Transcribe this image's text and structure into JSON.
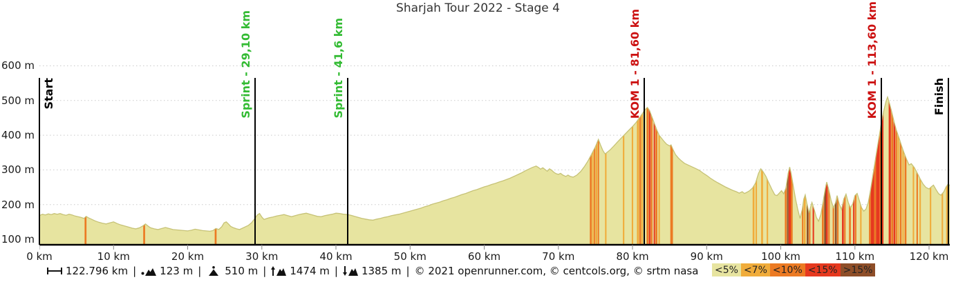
{
  "chart_data": {
    "type": "area",
    "title": "Sharjah Tour 2022 - Stage 4",
    "x_unit": "km",
    "y_unit": "m",
    "x_range_km": [
      0,
      122.796
    ],
    "y_axis_ticks_m": [
      600,
      500,
      400,
      300,
      200,
      100
    ],
    "x_ticks_km": [
      0,
      10,
      20,
      30,
      40,
      50,
      60,
      70,
      80,
      90,
      100,
      110,
      120
    ],
    "grid": "horizontal-dotted",
    "gradient_colors": {
      "lt5": "#e7e4a0",
      "lt7": "#f0ac3b",
      "lt10": "#ec7a23",
      "lt15": "#e6391f",
      "gt15": "#8e4e28"
    },
    "legend": [
      {
        "label": "<5%",
        "color": "#e7e4a0"
      },
      {
        "label": "<7%",
        "color": "#f0ac3b"
      },
      {
        "label": "<10%",
        "color": "#ec7a23"
      },
      {
        "label": "<15%",
        "color": "#e6391f"
      },
      {
        "label": ">15%",
        "color": "#8e4e28"
      }
    ],
    "markers": [
      {
        "type": "start",
        "label": "Start",
        "km": 0,
        "color": "#000000"
      },
      {
        "type": "sprint",
        "label": "Sprint - 29,10 km",
        "km": 29.1,
        "color": "#33bb33"
      },
      {
        "type": "sprint",
        "label": "Sprint - 41,6 km",
        "km": 41.6,
        "color": "#33bb33"
      },
      {
        "type": "kom",
        "label": "KOM 1 - 81,60 km",
        "km": 81.6,
        "color": "#cc1111"
      },
      {
        "type": "kom",
        "label": "KOM 1 - 113,60 km",
        "km": 113.6,
        "color": "#cc1111"
      },
      {
        "type": "finish",
        "label": "Finish",
        "km": 122.796,
        "color": "#000000"
      }
    ],
    "elevation_profile": [
      [
        0,
        168
      ],
      [
        0.4,
        172
      ],
      [
        0.8,
        170
      ],
      [
        1.2,
        173
      ],
      [
        1.6,
        171
      ],
      [
        2,
        174
      ],
      [
        2.4,
        172
      ],
      [
        2.8,
        174
      ],
      [
        3.2,
        171
      ],
      [
        3.6,
        169
      ],
      [
        4,
        172
      ],
      [
        4.4,
        170
      ],
      [
        4.8,
        167
      ],
      [
        5.2,
        165
      ],
      [
        5.6,
        163
      ],
      [
        6,
        160
      ],
      [
        6.3,
        166
      ],
      [
        6.6,
        162
      ],
      [
        7,
        158
      ],
      [
        7.5,
        153
      ],
      [
        8,
        149
      ],
      [
        8.5,
        146
      ],
      [
        9,
        144
      ],
      [
        9.5,
        147
      ],
      [
        10,
        150
      ],
      [
        10.5,
        145
      ],
      [
        11,
        141
      ],
      [
        11.5,
        138
      ],
      [
        12,
        135
      ],
      [
        12.5,
        132
      ],
      [
        13,
        130
      ],
      [
        13.5,
        133
      ],
      [
        14,
        139
      ],
      [
        14.3,
        144
      ],
      [
        14.7,
        137
      ],
      [
        15,
        133
      ],
      [
        15.5,
        130
      ],
      [
        16,
        128
      ],
      [
        16.5,
        131
      ],
      [
        17,
        134
      ],
      [
        17.5,
        131
      ],
      [
        18,
        128
      ],
      [
        18.5,
        127
      ],
      [
        19,
        126
      ],
      [
        19.5,
        125
      ],
      [
        20,
        124
      ],
      [
        20.5,
        126
      ],
      [
        21,
        129
      ],
      [
        21.5,
        127
      ],
      [
        22,
        125
      ],
      [
        22.5,
        124
      ],
      [
        23,
        123
      ],
      [
        23.4,
        125
      ],
      [
        23.8,
        131
      ],
      [
        24.2,
        128
      ],
      [
        24.6,
        136
      ],
      [
        24.9,
        147
      ],
      [
        25.2,
        150
      ],
      [
        25.5,
        144
      ],
      [
        25.8,
        137
      ],
      [
        26.2,
        133
      ],
      [
        26.6,
        130
      ],
      [
        27,
        128
      ],
      [
        27.4,
        132
      ],
      [
        27.8,
        136
      ],
      [
        28.2,
        140
      ],
      [
        28.6,
        147
      ],
      [
        29,
        158
      ],
      [
        29.4,
        170
      ],
      [
        29.7,
        174
      ],
      [
        30,
        164
      ],
      [
        30.3,
        157
      ],
      [
        30.7,
        160
      ],
      [
        31,
        162
      ],
      [
        31.5,
        164
      ],
      [
        32,
        167
      ],
      [
        32.5,
        169
      ],
      [
        33,
        171
      ],
      [
        33.5,
        168
      ],
      [
        34,
        165
      ],
      [
        34.5,
        168
      ],
      [
        35,
        171
      ],
      [
        35.5,
        173
      ],
      [
        36,
        175
      ],
      [
        36.5,
        172
      ],
      [
        37,
        169
      ],
      [
        37.5,
        166
      ],
      [
        38,
        165
      ],
      [
        38.5,
        168
      ],
      [
        39,
        170
      ],
      [
        39.5,
        172
      ],
      [
        40,
        175
      ],
      [
        40.5,
        174
      ],
      [
        41,
        172
      ],
      [
        41.6,
        171
      ],
      [
        42,
        169
      ],
      [
        42.5,
        166
      ],
      [
        43,
        163
      ],
      [
        43.5,
        160
      ],
      [
        44,
        158
      ],
      [
        44.5,
        156
      ],
      [
        45,
        155
      ],
      [
        45.5,
        158
      ],
      [
        46,
        160
      ],
      [
        46.5,
        163
      ],
      [
        47,
        165
      ],
      [
        47.5,
        168
      ],
      [
        48,
        170
      ],
      [
        48.5,
        172
      ],
      [
        49,
        175
      ],
      [
        49.5,
        178
      ],
      [
        50,
        181
      ],
      [
        50.5,
        184
      ],
      [
        51,
        187
      ],
      [
        51.5,
        190
      ],
      [
        52,
        194
      ],
      [
        52.5,
        197
      ],
      [
        53,
        201
      ],
      [
        53.5,
        204
      ],
      [
        54,
        207
      ],
      [
        54.5,
        211
      ],
      [
        55,
        214
      ],
      [
        55.5,
        218
      ],
      [
        56,
        221
      ],
      [
        56.5,
        225
      ],
      [
        57,
        229
      ],
      [
        57.5,
        232
      ],
      [
        58,
        236
      ],
      [
        58.5,
        240
      ],
      [
        59,
        243
      ],
      [
        59.5,
        247
      ],
      [
        60,
        251
      ],
      [
        60.5,
        254
      ],
      [
        61,
        258
      ],
      [
        61.5,
        261
      ],
      [
        62,
        265
      ],
      [
        62.5,
        268
      ],
      [
        63,
        272
      ],
      [
        63.5,
        276
      ],
      [
        64,
        281
      ],
      [
        64.5,
        286
      ],
      [
        65,
        291
      ],
      [
        65.5,
        297
      ],
      [
        66,
        302
      ],
      [
        66.5,
        307
      ],
      [
        67,
        311
      ],
      [
        67.3,
        307
      ],
      [
        67.6,
        302
      ],
      [
        67.9,
        306
      ],
      [
        68.2,
        301
      ],
      [
        68.5,
        296
      ],
      [
        68.8,
        303
      ],
      [
        69.1,
        299
      ],
      [
        69.4,
        293
      ],
      [
        69.7,
        289
      ],
      [
        70,
        287
      ],
      [
        70.3,
        290
      ],
      [
        70.6,
        285
      ],
      [
        71,
        281
      ],
      [
        71.3,
        285
      ],
      [
        71.6,
        281
      ],
      [
        72,
        279
      ],
      [
        72.5,
        285
      ],
      [
        73,
        295
      ],
      [
        73.5,
        309
      ],
      [
        74,
        326
      ],
      [
        74.5,
        346
      ],
      [
        75,
        367
      ],
      [
        75.4,
        388
      ],
      [
        75.7,
        371
      ],
      [
        76,
        356
      ],
      [
        76.3,
        346
      ],
      [
        76.6,
        351
      ],
      [
        77,
        358
      ],
      [
        77.5,
        369
      ],
      [
        78,
        381
      ],
      [
        78.5,
        392
      ],
      [
        79,
        403
      ],
      [
        79.5,
        414
      ],
      [
        80,
        425
      ],
      [
        80.5,
        437
      ],
      [
        81,
        452
      ],
      [
        81.3,
        461
      ],
      [
        81.6,
        471
      ],
      [
        82,
        480
      ],
      [
        82.3,
        471
      ],
      [
        82.6,
        454
      ],
      [
        83,
        431
      ],
      [
        83.3,
        414
      ],
      [
        83.6,
        400
      ],
      [
        84,
        389
      ],
      [
        84.3,
        381
      ],
      [
        84.6,
        374
      ],
      [
        85,
        369
      ],
      [
        85.2,
        372
      ],
      [
        85.5,
        357
      ],
      [
        85.8,
        344
      ],
      [
        86.2,
        334
      ],
      [
        86.6,
        326
      ],
      [
        87,
        319
      ],
      [
        87.5,
        314
      ],
      [
        88,
        309
      ],
      [
        88.5,
        304
      ],
      [
        89,
        299
      ],
      [
        89.5,
        291
      ],
      [
        90,
        284
      ],
      [
        90.5,
        276
      ],
      [
        91,
        269
      ],
      [
        91.5,
        263
      ],
      [
        92,
        257
      ],
      [
        92.5,
        251
      ],
      [
        93,
        246
      ],
      [
        93.5,
        241
      ],
      [
        94,
        237
      ],
      [
        94.4,
        233
      ],
      [
        94.8,
        237
      ],
      [
        95.1,
        232
      ],
      [
        95.4,
        235
      ],
      [
        95.8,
        240
      ],
      [
        96.2,
        248
      ],
      [
        96.6,
        262
      ],
      [
        97,
        290
      ],
      [
        97.3,
        303
      ],
      [
        97.6,
        295
      ],
      [
        98,
        281
      ],
      [
        98.4,
        262
      ],
      [
        98.8,
        244
      ],
      [
        99.2,
        228
      ],
      [
        99.5,
        226
      ],
      [
        99.8,
        233
      ],
      [
        100.1,
        240
      ],
      [
        100.4,
        231
      ],
      [
        100.7,
        248
      ],
      [
        101,
        290
      ],
      [
        101.2,
        308
      ],
      [
        101.4,
        290
      ],
      [
        101.7,
        252
      ],
      [
        102,
        215
      ],
      [
        102.3,
        185
      ],
      [
        102.6,
        160
      ],
      [
        102.9,
        186
      ],
      [
        103.1,
        216
      ],
      [
        103.3,
        228
      ],
      [
        103.5,
        206
      ],
      [
        103.8,
        176
      ],
      [
        104,
        191
      ],
      [
        104.2,
        206
      ],
      [
        104.5,
        186
      ],
      [
        104.8,
        163
      ],
      [
        105.1,
        152
      ],
      [
        105.4,
        171
      ],
      [
        105.7,
        206
      ],
      [
        106,
        246
      ],
      [
        106.2,
        265
      ],
      [
        106.5,
        241
      ],
      [
        106.8,
        211
      ],
      [
        107.1,
        191
      ],
      [
        107.4,
        206
      ],
      [
        107.6,
        226
      ],
      [
        107.9,
        201
      ],
      [
        108.2,
        186
      ],
      [
        108.5,
        216
      ],
      [
        108.8,
        230
      ],
      [
        109.1,
        206
      ],
      [
        109.4,
        191
      ],
      [
        109.7,
        201
      ],
      [
        110,
        226
      ],
      [
        110.3,
        232
      ],
      [
        110.6,
        211
      ],
      [
        110.9,
        191
      ],
      [
        111.2,
        181
      ],
      [
        111.5,
        187
      ],
      [
        111.8,
        206
      ],
      [
        112.1,
        241
      ],
      [
        112.4,
        281
      ],
      [
        112.7,
        321
      ],
      [
        113,
        361
      ],
      [
        113.3,
        401
      ],
      [
        113.6,
        441
      ],
      [
        113.9,
        471
      ],
      [
        114.2,
        498
      ],
      [
        114.4,
        510
      ],
      [
        114.7,
        489
      ],
      [
        115,
        464
      ],
      [
        115.3,
        437
      ],
      [
        115.6,
        414
      ],
      [
        116,
        389
      ],
      [
        116.3,
        369
      ],
      [
        116.6,
        351
      ],
      [
        117,
        329
      ],
      [
        117.3,
        314
      ],
      [
        117.6,
        318
      ],
      [
        118,
        307
      ],
      [
        118.4,
        291
      ],
      [
        118.8,
        274
      ],
      [
        119.2,
        259
      ],
      [
        119.6,
        249
      ],
      [
        120,
        245
      ],
      [
        120.3,
        251
      ],
      [
        120.6,
        256
      ],
      [
        121,
        241
      ],
      [
        121.3,
        231
      ],
      [
        121.6,
        227
      ],
      [
        122,
        237
      ],
      [
        122.3,
        251
      ],
      [
        122.6,
        260
      ],
      [
        122.796,
        254
      ]
    ],
    "gradient_segments": [
      [
        6.1,
        6.35,
        "lt10"
      ],
      [
        14.0,
        14.25,
        "lt10"
      ],
      [
        23.65,
        23.9,
        "lt10"
      ],
      [
        74.25,
        74.5,
        "lt10"
      ],
      [
        74.55,
        74.75,
        "lt7"
      ],
      [
        74.8,
        75.0,
        "lt10"
      ],
      [
        75.05,
        75.25,
        "lt7"
      ],
      [
        75.3,
        75.5,
        "lt10"
      ],
      [
        76.3,
        76.5,
        "lt7"
      ],
      [
        78.7,
        78.9,
        "lt7"
      ],
      [
        79.9,
        80.1,
        "lt7"
      ],
      [
        80.6,
        80.85,
        "lt7"
      ],
      [
        80.9,
        81.15,
        "lt10"
      ],
      [
        81.2,
        81.4,
        "lt7"
      ],
      [
        81.9,
        82.15,
        "lt10"
      ],
      [
        82.2,
        82.45,
        "lt15"
      ],
      [
        82.5,
        82.7,
        "lt10"
      ],
      [
        82.85,
        83.05,
        "lt15"
      ],
      [
        83.1,
        83.35,
        "lt10"
      ],
      [
        83.5,
        83.7,
        "lt7"
      ],
      [
        85.1,
        85.45,
        "lt10"
      ],
      [
        96.2,
        96.45,
        "lt7"
      ],
      [
        96.6,
        96.8,
        "lt7"
      ],
      [
        97.35,
        97.6,
        "lt7"
      ],
      [
        98.1,
        98.3,
        "lt7"
      ],
      [
        100.55,
        100.8,
        "lt10"
      ],
      [
        100.85,
        101.05,
        "gt15"
      ],
      [
        101.05,
        101.35,
        "lt15"
      ],
      [
        101.35,
        101.6,
        "lt10"
      ],
      [
        102.85,
        103.05,
        "lt10"
      ],
      [
        103.1,
        103.35,
        "lt7"
      ],
      [
        103.5,
        103.75,
        "gt15"
      ],
      [
        103.8,
        104.0,
        "lt10"
      ],
      [
        104.3,
        104.5,
        "lt15"
      ],
      [
        105.55,
        105.8,
        "lt10"
      ],
      [
        105.85,
        106.1,
        "gt15"
      ],
      [
        106.1,
        106.35,
        "lt15"
      ],
      [
        106.4,
        106.6,
        "lt10"
      ],
      [
        107.0,
        107.2,
        "lt10"
      ],
      [
        107.3,
        107.55,
        "gt15"
      ],
      [
        107.6,
        107.8,
        "lt10"
      ],
      [
        108.25,
        108.5,
        "lt15"
      ],
      [
        108.55,
        108.75,
        "lt10"
      ],
      [
        109.2,
        109.45,
        "lt10"
      ],
      [
        109.75,
        109.95,
        "lt15"
      ],
      [
        110.0,
        110.2,
        "lt10"
      ],
      [
        110.7,
        110.9,
        "lt7"
      ],
      [
        111.9,
        112.15,
        "lt10"
      ],
      [
        112.15,
        112.6,
        "lt15"
      ],
      [
        112.6,
        112.85,
        "lt10"
      ],
      [
        112.85,
        113.35,
        "lt15"
      ],
      [
        113.35,
        113.55,
        "lt10"
      ],
      [
        113.6,
        113.85,
        "lt15"
      ],
      [
        114.55,
        114.85,
        "lt15"
      ],
      [
        114.9,
        115.15,
        "lt10"
      ],
      [
        115.2,
        115.45,
        "lt15"
      ],
      [
        115.5,
        115.7,
        "lt10"
      ],
      [
        115.75,
        115.95,
        "lt7"
      ],
      [
        116.05,
        116.3,
        "lt10"
      ],
      [
        116.4,
        116.6,
        "lt7"
      ],
      [
        116.7,
        116.95,
        "lt10"
      ],
      [
        117.8,
        118.0,
        "lt7"
      ],
      [
        118.3,
        118.5,
        "lt10"
      ],
      [
        118.7,
        118.9,
        "lt7"
      ],
      [
        120.1,
        120.3,
        "lt7"
      ],
      [
        121.7,
        121.9,
        "lt7"
      ],
      [
        122.3,
        122.5,
        "lt7"
      ]
    ]
  },
  "footer": {
    "separator": "|",
    "stats": [
      {
        "icon": "distance-icon",
        "value": "122.796 km"
      },
      {
        "icon": "min-elevation-icon",
        "value": "123 m"
      },
      {
        "icon": "max-elevation-icon",
        "value": "510 m"
      },
      {
        "icon": "ascent-icon",
        "value": "1474 m"
      },
      {
        "icon": "descent-icon",
        "value": "1385 m"
      }
    ],
    "copyright": "© 2021 openrunner.com, © centcols.org, © srtm nasa"
  }
}
